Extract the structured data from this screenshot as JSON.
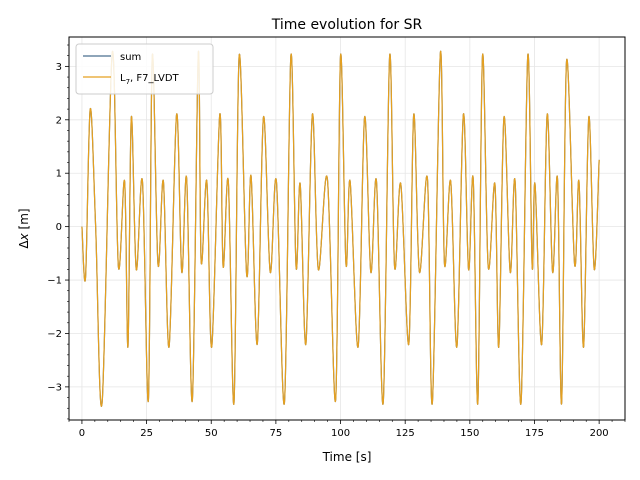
{
  "chart_data": {
    "type": "line",
    "title": "Time evolution for SR",
    "xlabel": "Time [s]",
    "ylabel_prefix": "Δ",
    "ylabel_var": "x",
    "ylabel_suffix": " [m]",
    "xlim": [
      -5,
      210
    ],
    "ylim": [
      -3.62,
      3.55
    ],
    "xticks": [
      0,
      25,
      50,
      75,
      100,
      125,
      150,
      175,
      200
    ],
    "yticks": [
      -3,
      -2,
      -1,
      0,
      1,
      2,
      3
    ],
    "yticklabels": [
      "−3",
      "−2",
      "−1",
      "0",
      "1",
      "2",
      "3"
    ],
    "grid": true,
    "legend": "top-left",
    "colors": {
      "sum": "#4a6f8f",
      "lvdt": "#e5a020"
    },
    "series": [
      {
        "name": "sum",
        "x": [
          0,
          1.4,
          3.2,
          5.3,
          7.8,
          11.7,
          14.1,
          16.5,
          17.8,
          19.1,
          21.0,
          23.4,
          25.7,
          27.2,
          29.4,
          31.5,
          33.7,
          36.6,
          38.6,
          40.5,
          42.7,
          45.0,
          46.1,
          48.3,
          50.2,
          53.3,
          54.6,
          56.6,
          58.8,
          60.8,
          63.7,
          65.4,
          67.8,
          70.2,
          72.8,
          75.2,
          78.3,
          80.8,
          82.8,
          84.4,
          86.6,
          89.1,
          91.4,
          94.9,
          98.1,
          100.0,
          102.1,
          103.7,
          106.8,
          109.3,
          111.7,
          113.9,
          116.5,
          119.0,
          120.9,
          123.3,
          126.4,
          128.3,
          130.5,
          133.6,
          135.5,
          138.6,
          140.2,
          142.6,
          145.0,
          147.5,
          149.5,
          151.3,
          153.1,
          154.9,
          157.1,
          159.7,
          161.2,
          163.2,
          165.6,
          167.5,
          169.8,
          172.4,
          174.1,
          175.2,
          177.8,
          179.9,
          182.0,
          183.9,
          185.5,
          187.4,
          190.5,
          192.2,
          194.0,
          196.0,
          198.1,
          200.0
        ],
        "y": [
          0.0,
          -0.95,
          2.2,
          0.0,
          -3.3,
          3.25,
          -0.75,
          0.85,
          -2.25,
          2.05,
          -0.8,
          0.85,
          -3.25,
          3.2,
          -0.7,
          0.85,
          -2.25,
          2.1,
          -0.85,
          0.9,
          -3.25,
          3.25,
          -0.65,
          0.85,
          -2.25,
          2.1,
          -0.75,
          0.85,
          -3.3,
          3.2,
          -0.9,
          0.95,
          -2.2,
          2.05,
          -0.85,
          0.85,
          -3.3,
          3.2,
          -0.75,
          0.8,
          -2.2,
          2.1,
          -0.8,
          0.9,
          -3.25,
          3.2,
          -0.7,
          0.85,
          -2.25,
          2.05,
          -0.85,
          0.85,
          -3.3,
          3.2,
          -0.75,
          0.8,
          -2.2,
          2.1,
          -0.85,
          0.9,
          -3.3,
          3.25,
          -0.7,
          0.85,
          -2.25,
          2.1,
          -0.8,
          0.9,
          -3.3,
          3.2,
          -0.75,
          0.8,
          -2.25,
          2.05,
          -0.85,
          0.85,
          -3.3,
          3.2,
          -0.75,
          0.8,
          -2.2,
          2.1,
          -0.85,
          0.9,
          -3.3,
          3.1,
          -0.7,
          0.85,
          -2.25,
          2.05,
          -0.8,
          1.25
        ]
      },
      {
        "name": "L",
        "name_sub": "7",
        "name_rest": ", F7_LVDT",
        "x": [
          0,
          1.4,
          3.2,
          5.3,
          7.8,
          11.7,
          14.1,
          16.5,
          17.8,
          19.1,
          21.0,
          23.4,
          25.7,
          27.2,
          29.4,
          31.5,
          33.7,
          36.6,
          38.6,
          40.5,
          42.7,
          45.0,
          46.1,
          48.3,
          50.2,
          53.3,
          54.6,
          56.6,
          58.8,
          60.8,
          63.7,
          65.4,
          67.8,
          70.2,
          72.8,
          75.2,
          78.3,
          80.8,
          82.8,
          84.4,
          86.6,
          89.1,
          91.4,
          94.9,
          98.1,
          100.0,
          102.1,
          103.7,
          106.8,
          109.3,
          111.7,
          113.9,
          116.5,
          119.0,
          120.9,
          123.3,
          126.4,
          128.3,
          130.5,
          133.6,
          135.5,
          138.6,
          140.2,
          142.6,
          145.0,
          147.5,
          149.5,
          151.3,
          153.1,
          154.9,
          157.1,
          159.7,
          161.2,
          163.2,
          165.6,
          167.5,
          169.8,
          172.4,
          174.1,
          175.2,
          177.8,
          179.9,
          182.0,
          183.9,
          185.5,
          187.4,
          190.5,
          192.2,
          194.0,
          196.0,
          198.1,
          200.0
        ],
        "y": [
          0.0,
          -0.95,
          2.2,
          0.0,
          -3.3,
          3.25,
          -0.75,
          0.85,
          -2.25,
          2.05,
          -0.8,
          0.85,
          -3.25,
          3.2,
          -0.7,
          0.85,
          -2.25,
          2.1,
          -0.85,
          0.9,
          -3.25,
          3.25,
          -0.65,
          0.85,
          -2.25,
          2.1,
          -0.75,
          0.85,
          -3.3,
          3.2,
          -0.9,
          0.95,
          -2.2,
          2.05,
          -0.85,
          0.85,
          -3.3,
          3.2,
          -0.75,
          0.8,
          -2.2,
          2.1,
          -0.8,
          0.9,
          -3.25,
          3.2,
          -0.7,
          0.85,
          -2.25,
          2.05,
          -0.85,
          0.85,
          -3.3,
          3.2,
          -0.75,
          0.8,
          -2.2,
          2.1,
          -0.85,
          0.9,
          -3.3,
          3.25,
          -0.7,
          0.85,
          -2.25,
          2.1,
          -0.8,
          0.9,
          -3.3,
          3.2,
          -0.75,
          0.8,
          -2.25,
          2.05,
          -0.85,
          0.85,
          -3.3,
          3.2,
          -0.75,
          0.8,
          -2.2,
          2.1,
          -0.85,
          0.9,
          -3.3,
          3.1,
          -0.7,
          0.85,
          -2.25,
          2.05,
          -0.8,
          1.25
        ]
      }
    ]
  }
}
